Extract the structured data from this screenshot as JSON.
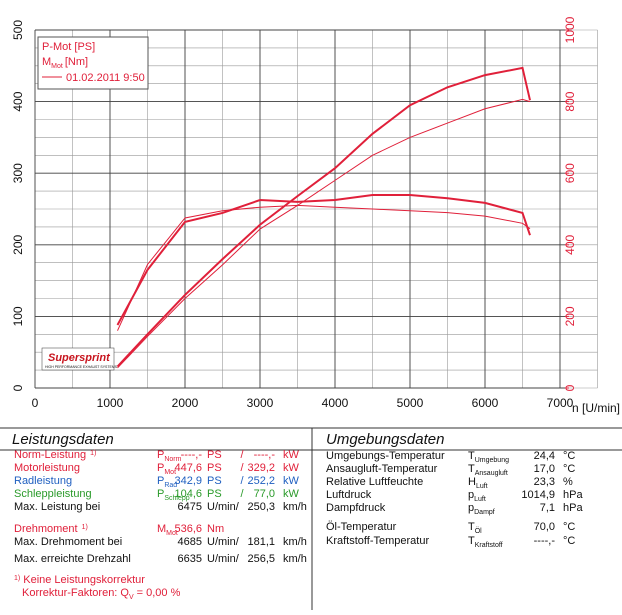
{
  "chart_data": {
    "type": "line",
    "xlabel": "n [U/min]",
    "ylabel": "P-Mot [PS]",
    "y2label": {
      "base": "M",
      "sub": "Mot",
      "unit": "[Nm]"
    },
    "x": [
      1100,
      1500,
      2000,
      2500,
      3000,
      3500,
      4000,
      4500,
      5000,
      5500,
      6000,
      6500,
      6600
    ],
    "series": [
      {
        "name": "01.02.2011 9:50",
        "color": "#e0203a",
        "width": 2,
        "values": [
          30,
          75,
          130,
          180,
          228,
          268,
          307,
          355,
          395,
          420,
          437,
          447,
          402
        ]
      },
      {
        "color": "#e0203a",
        "width": 1,
        "values": [
          28,
          72,
          125,
          172,
          222,
          255,
          290,
          325,
          350,
          370,
          390,
          403,
          400
        ]
      },
      {
        "color": "#e0203a",
        "width": 2,
        "axis": "y2",
        "values": [
          176,
          330,
          464,
          489,
          525,
          520,
          525,
          539,
          539,
          530,
          517,
          489,
          427
        ]
      },
      {
        "color": "#e0203a",
        "width": 1,
        "axis": "y2",
        "values": [
          160,
          345,
          475,
          495,
          505,
          510,
          505,
          500,
          495,
          490,
          480,
          460,
          445
        ]
      }
    ],
    "xlim": [
      0,
      7000
    ],
    "xticks": [
      0,
      1000,
      2000,
      3000,
      4000,
      5000,
      6000,
      7000
    ],
    "ylim": [
      0,
      500
    ],
    "yticks": [
      0,
      100,
      200,
      300,
      400,
      500
    ],
    "y2lim": [
      0,
      1000
    ],
    "y2ticks": [
      0,
      200,
      400,
      600,
      800,
      1000
    ],
    "grid": true
  },
  "logo": {
    "name": "Supersprint",
    "tagline": "HIGH PERFORMANCE EXHAUST SYSTEMS"
  },
  "leistung": {
    "title": "Leistungsdaten",
    "rows": [
      {
        "label": "Norm-Leistung",
        "note": "1)",
        "sym": "P",
        "sub": "Norm",
        "color": "#e0203a",
        "cells": [
          "----,-",
          "PS",
          "/",
          "----,-",
          "kW"
        ]
      },
      {
        "label": "Motorleistung",
        "sym": "P",
        "sub": "Mot",
        "color": "#e0203a",
        "cells": [
          "447,6",
          "PS",
          "/",
          "329,2",
          "kW"
        ]
      },
      {
        "label": "Radleistung",
        "sym": "P",
        "sub": "Rad",
        "color": "#1f5fc0",
        "cells": [
          "342,9",
          "PS",
          "/",
          "252,2",
          "kW"
        ]
      },
      {
        "label": "Schleppleistung",
        "sym": "P",
        "sub": "Schlepp",
        "color": "#2a9a2a",
        "cells": [
          "104,6",
          "PS",
          "/",
          "77,0",
          "kW"
        ]
      },
      {
        "label": "Max. Leistung bei",
        "color": "#111111",
        "cells": [
          "6475",
          "U/min/",
          "250,3",
          "km/h"
        ]
      },
      {
        "label": "Drehmoment",
        "note": "1)",
        "sym": "M",
        "sub": "Mot",
        "color": "#e0203a",
        "cells": [
          "536,6",
          "Nm"
        ]
      },
      {
        "label": "Max. Drehmoment bei",
        "color": "#111111",
        "cells": [
          "4685",
          "U/min/",
          "181,1",
          "km/h"
        ]
      },
      {
        "label": "Max. erreichte Drehzahl",
        "color": "#111111",
        "cells": [
          "6635",
          "U/min/",
          "256,5",
          "km/h"
        ]
      }
    ],
    "footnote": {
      "note": "1)",
      "text": "Keine Leistungskorrektur",
      "factor": "Korrektur-Faktoren: Q",
      "sub": "V",
      "value": "=  0,00 %"
    }
  },
  "umgebung": {
    "title": "Umgebungsdaten",
    "rows": [
      {
        "label": "Umgebungs-Temperatur",
        "sym": "T",
        "sub": "Umgebung",
        "value": "24,4",
        "unit": "°C"
      },
      {
        "label": "Ansaugluft-Temperatur",
        "sym": "T",
        "sub": "Ansaugluft",
        "value": "17,0",
        "unit": "°C"
      },
      {
        "label": "Relative Luftfeuchte",
        "sym": "H",
        "sub": "Luft",
        "value": "23,3",
        "unit": "%"
      },
      {
        "label": "Luftdruck",
        "sym": "p",
        "sub": "Luft",
        "value": "1014,9",
        "unit": "hPa"
      },
      {
        "label": "Dampfdruck",
        "sym": "p",
        "sub": "Dampf",
        "value": "7,1",
        "unit": "hPa"
      },
      {
        "label": "Öl-Temperatur",
        "sym": "T",
        "sub": "Öl",
        "value": "70,0",
        "unit": "°C"
      },
      {
        "label": "Kraftstoff-Temperatur",
        "sym": "T",
        "sub": "Kraftstoff",
        "value": "----,-",
        "unit": "°C"
      }
    ]
  }
}
